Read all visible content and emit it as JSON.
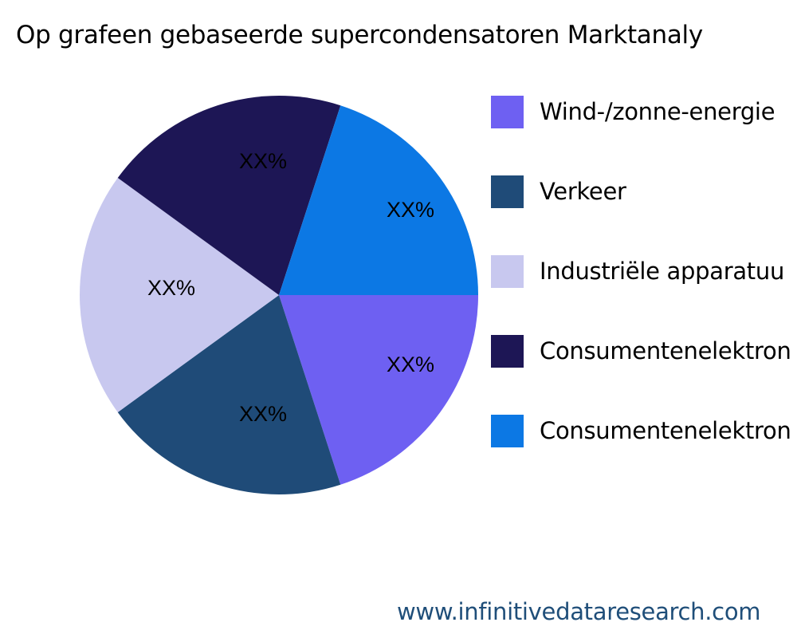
{
  "chart_data": {
    "type": "pie",
    "title": "Op grafeen gebaseerde supercondensatoren Marktanaly",
    "categories": [
      "Wind-/zonne-energie",
      "Verkeer",
      "Industriële apparatuu",
      "Consumentenelektron",
      "Consumentenelektron"
    ],
    "values": [
      20,
      20,
      20,
      20,
      20
    ],
    "data_labels": [
      "XX%",
      "XX%",
      "XX%",
      "XX%",
      "XX%"
    ],
    "colors": [
      "#6e60f2",
      "#1f4b78",
      "#c8c8ef",
      "#1d1655",
      "#0c78e4"
    ],
    "legend_placement": "right",
    "direction": "clockwise",
    "start_angle": "3 o'clock"
  },
  "footer": "www.infinitivedataresearch.com"
}
